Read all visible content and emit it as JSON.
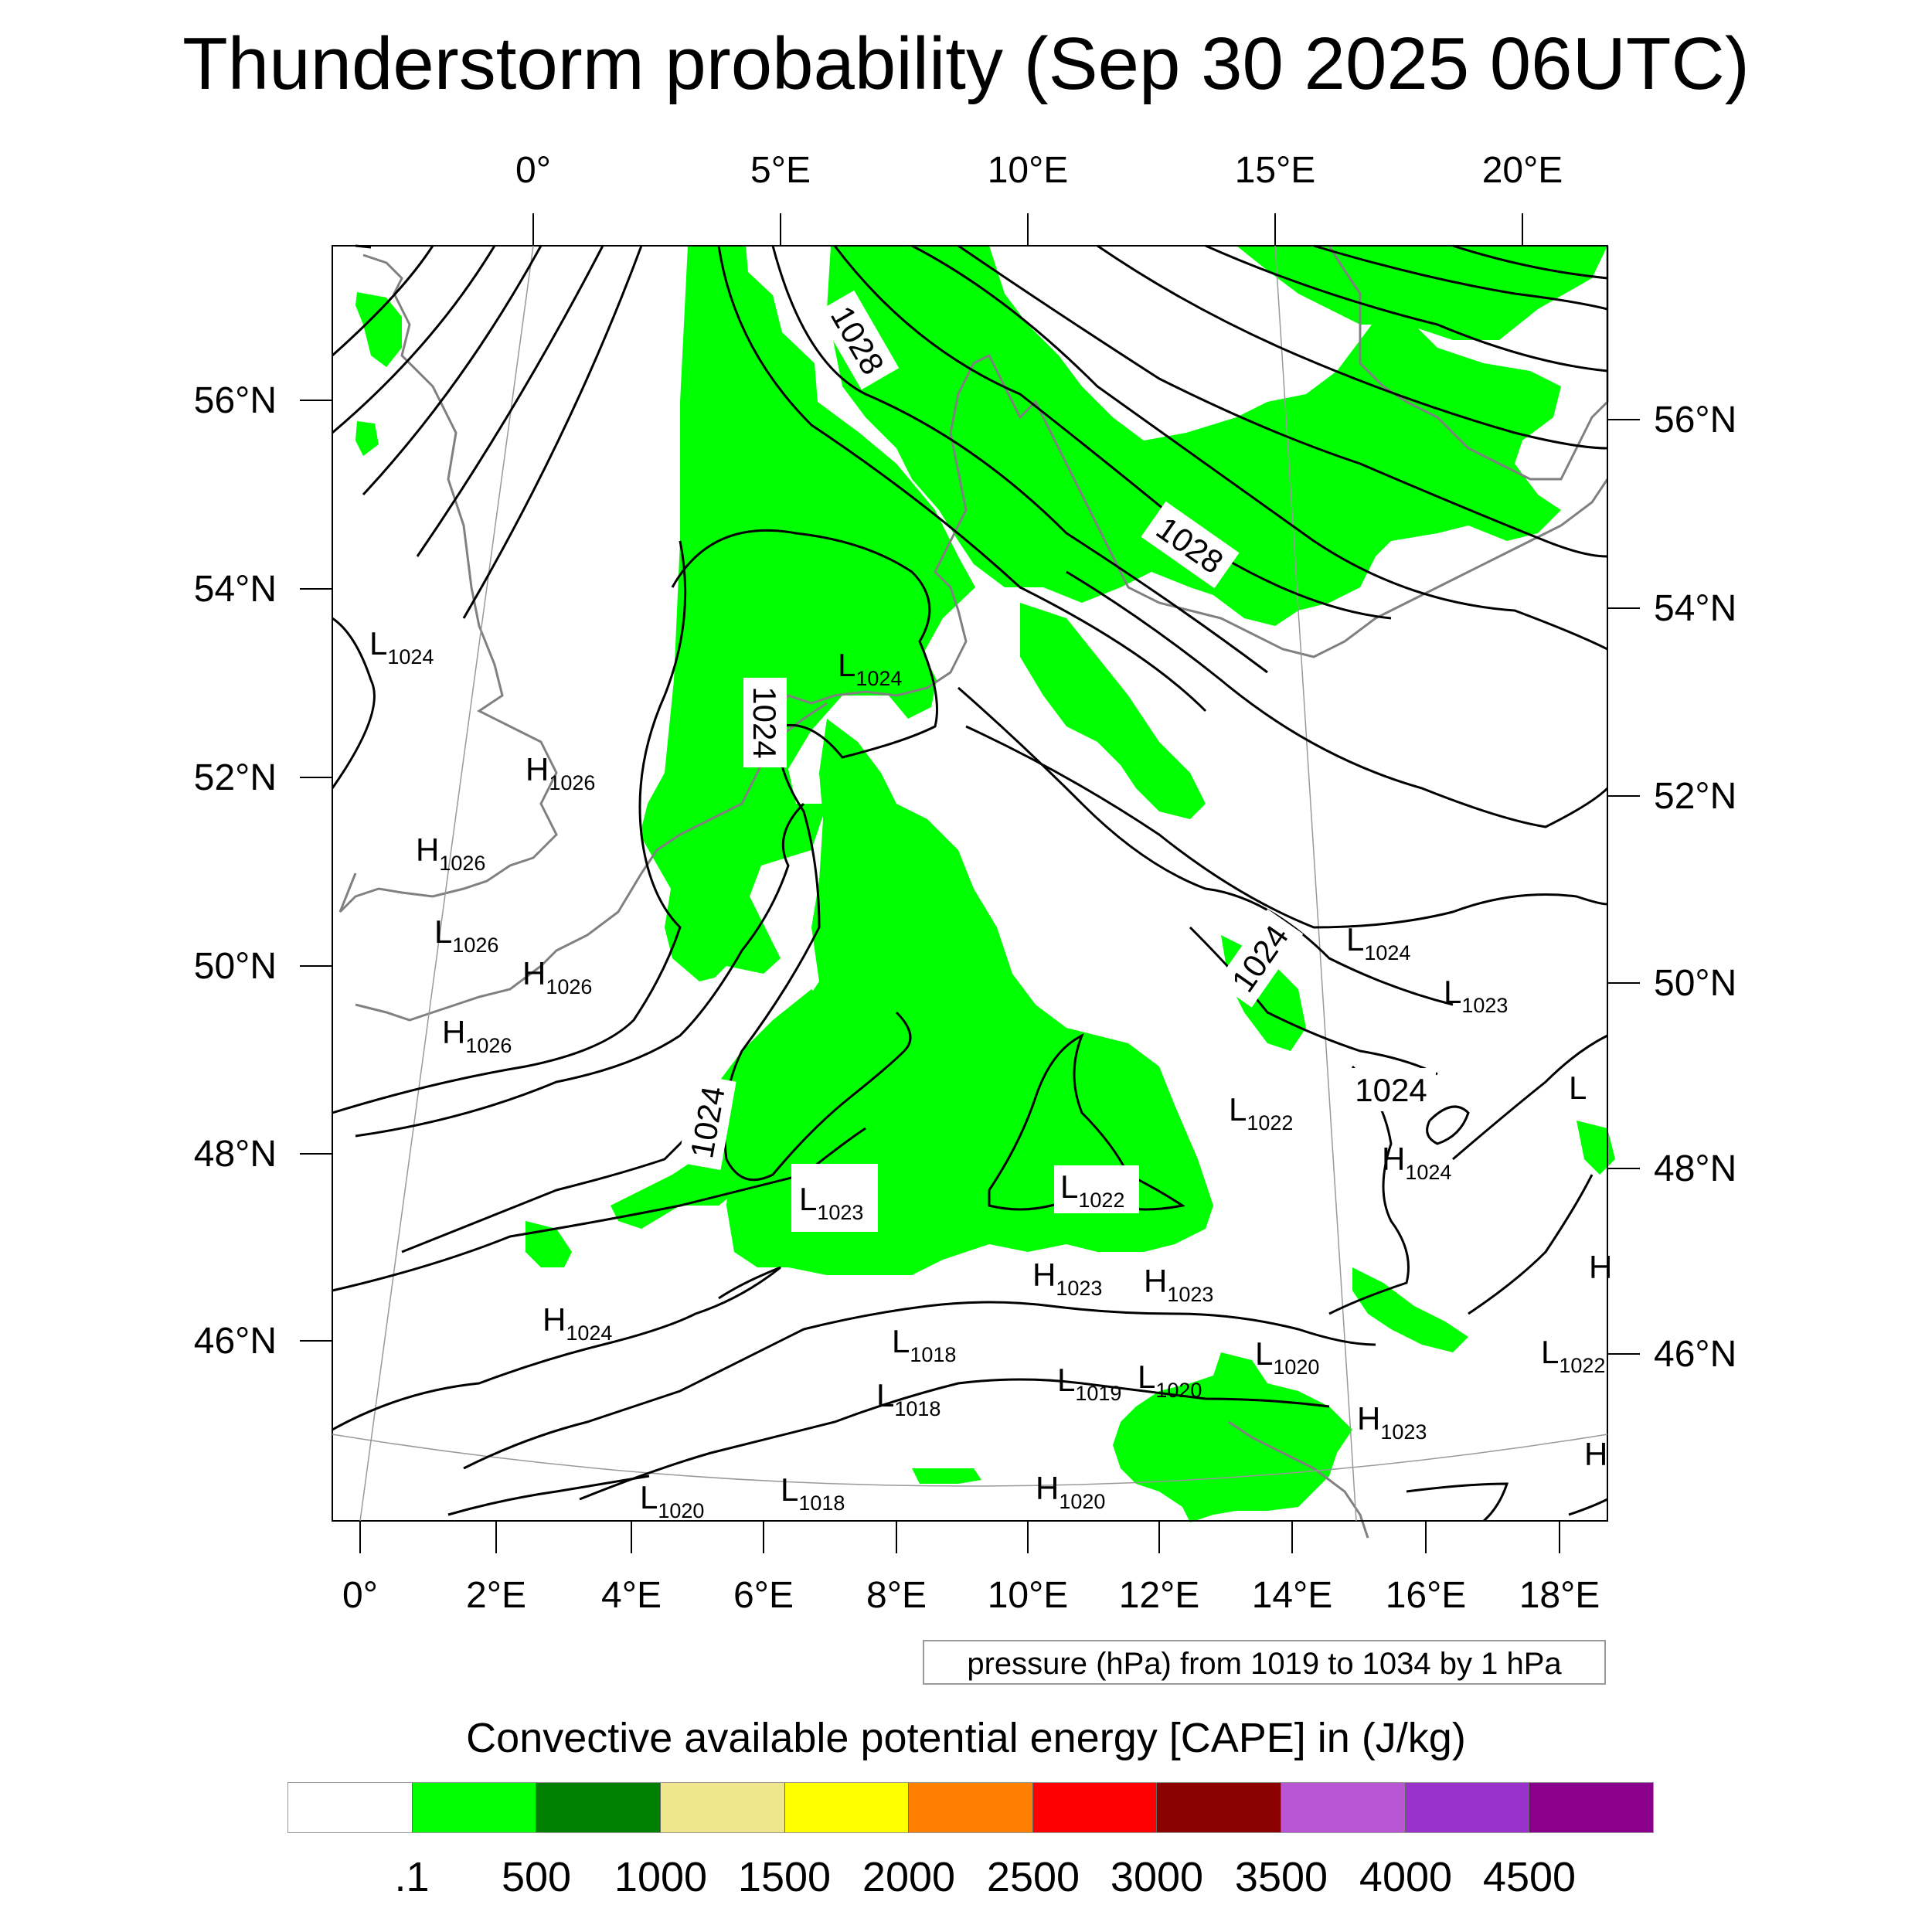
{
  "title": "Thunderstorm probability (Sep 30 2025 06UTC)",
  "axes": {
    "top_lon": [
      "0°",
      "5°E",
      "10°E",
      "15°E",
      "20°E"
    ],
    "bottom_lon": [
      "0°",
      "2°E",
      "4°E",
      "6°E",
      "8°E",
      "10°E",
      "12°E",
      "14°E",
      "16°E",
      "18°E"
    ],
    "left_lat": [
      "56°N",
      "54°N",
      "52°N",
      "50°N",
      "48°N",
      "46°N"
    ],
    "right_lat": [
      "56°N",
      "54°N",
      "52°N",
      "50°N",
      "48°N",
      "46°N"
    ]
  },
  "contour_labels": [
    "1028",
    "1028",
    "1024",
    "1024",
    "1024",
    "1024"
  ],
  "pressure_centers": [
    {
      "type": "L",
      "value": "1024"
    },
    {
      "type": "L",
      "value": "1024"
    },
    {
      "type": "H",
      "value": "1026"
    },
    {
      "type": "H",
      "value": "1026"
    },
    {
      "type": "L",
      "value": "1026"
    },
    {
      "type": "H",
      "value": "1026"
    },
    {
      "type": "H",
      "value": "1026"
    },
    {
      "type": "L",
      "value": "1024"
    },
    {
      "type": "L",
      "value": "1023"
    },
    {
      "type": "L",
      "value": "1022"
    },
    {
      "type": "H",
      "value": "1024"
    },
    {
      "type": "L",
      "value": "1023"
    },
    {
      "type": "L",
      "value": "1022"
    },
    {
      "type": "H",
      "value": "1023"
    },
    {
      "type": "H",
      "value": "1023"
    },
    {
      "type": "H",
      "value": "1024"
    },
    {
      "type": "L",
      "value": "1018"
    },
    {
      "type": "L",
      "value": "1018"
    },
    {
      "type": "L",
      "value": "1019"
    },
    {
      "type": "L",
      "value": "1020"
    },
    {
      "type": "L",
      "value": "1020"
    },
    {
      "type": "H",
      "value": "1023"
    },
    {
      "type": "L",
      "value": "1022"
    },
    {
      "type": "L",
      "value": "1020"
    },
    {
      "type": "L",
      "value": "1018"
    },
    {
      "type": "H",
      "value": "1020"
    }
  ],
  "edge_labels": [
    "L",
    "H",
    "H"
  ],
  "contour_info": "pressure (hPa) from 1019 to 1034 by 1 hPa",
  "legend": {
    "title": "Convective available potential energy [CAPE] in (J/kg)",
    "colors": [
      "#ffffff",
      "#00ff00",
      "#008000",
      "#f0e68c",
      "#ffff00",
      "#ff8000",
      "#ff0000",
      "#8b0000",
      "#b956d6",
      "#9932cc",
      "#8b008b"
    ],
    "ticks": [
      ".1",
      "500",
      "1000",
      "1500",
      "2000",
      "2500",
      "3000",
      "3500",
      "4000",
      "4500"
    ]
  },
  "style": {
    "cape_fill": "#00ff00",
    "isobar_color": "#000000",
    "coastline_color": "#808080"
  }
}
